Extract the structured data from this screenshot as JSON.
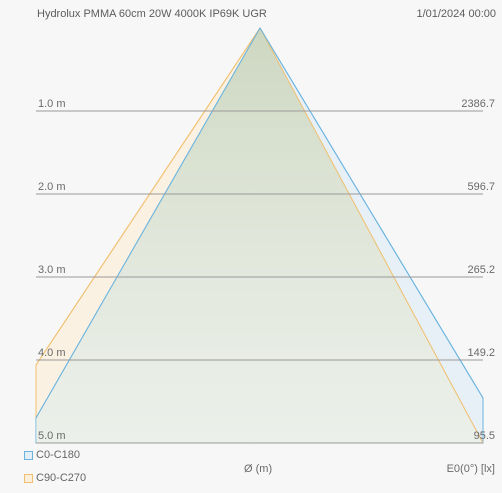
{
  "header": {
    "title": "Hydrolux PMMA 60cm 20W 4000K IP69K UGR",
    "timestamp": "1/01/2024 00:00"
  },
  "diagram": {
    "rows": [
      {
        "distance": "1.0 m",
        "illuminance": "2386.7"
      },
      {
        "distance": "2.0 m",
        "illuminance": "596.7"
      },
      {
        "distance": "3.0 m",
        "illuminance": "265.2"
      },
      {
        "distance": "4.0 m",
        "illuminance": "149.2"
      },
      {
        "distance": "5.0 m",
        "illuminance": "95.5"
      }
    ],
    "xlabel": "Ø (m)",
    "ylabel": "E0(0°) [lx]",
    "legend": [
      {
        "name": "C0-C180",
        "color": "#6ab4e0"
      },
      {
        "name": "C90-C270",
        "color": "#f0c070"
      }
    ]
  }
}
